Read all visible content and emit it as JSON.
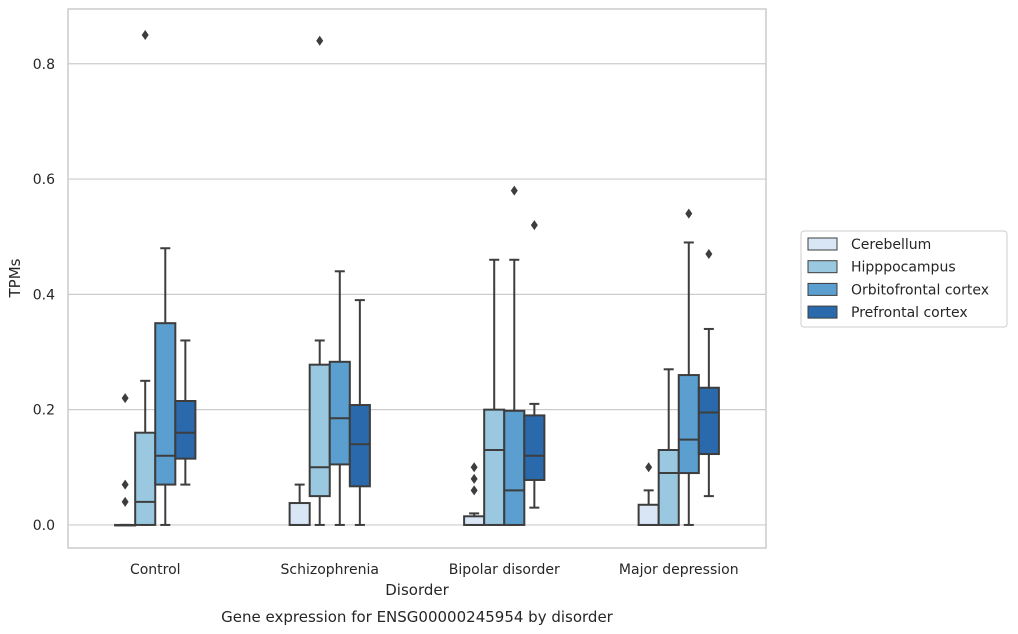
{
  "chart_data": {
    "type": "box",
    "title": "",
    "caption": "Gene expression for ENSG00000245954 by disorder",
    "xlabel": "Disorder",
    "ylabel": "TPMs",
    "ylim": [
      -0.04,
      0.895
    ],
    "yticks": [
      0.0,
      0.2,
      0.4,
      0.6,
      0.8
    ],
    "ytick_labels": [
      "0.0",
      "0.2",
      "0.4",
      "0.6",
      "0.8"
    ],
    "grid": "horizontal",
    "legend_position": "right",
    "categories": [
      "Control",
      "Schizophrenia",
      "Bipolar disorder",
      "Major depression"
    ],
    "series": [
      {
        "name": "Cerebellum",
        "color": "#d9e6f5",
        "boxes": [
          {
            "whisker_low": 0.0,
            "q1": 0.0,
            "median": 0.0,
            "q3": 0.0,
            "whisker_high": 0.0,
            "outliers": [
              0.04,
              0.07,
              0.22
            ]
          },
          {
            "whisker_low": 0.0,
            "q1": 0.0,
            "median": 0.0,
            "q3": 0.038,
            "whisker_high": 0.07,
            "outliers": []
          },
          {
            "whisker_low": 0.0,
            "q1": 0.0,
            "median": 0.0,
            "q3": 0.015,
            "whisker_high": 0.02,
            "outliers": [
              0.06,
              0.08,
              0.1
            ]
          },
          {
            "whisker_low": 0.0,
            "q1": 0.0,
            "median": 0.0,
            "q3": 0.035,
            "whisker_high": 0.06,
            "outliers": [
              0.1
            ]
          }
        ]
      },
      {
        "name": "Hipppocampus",
        "color": "#9ac8e0",
        "boxes": [
          {
            "whisker_low": 0.0,
            "q1": 0.0,
            "median": 0.04,
            "q3": 0.16,
            "whisker_high": 0.25,
            "outliers": [
              0.85
            ]
          },
          {
            "whisker_low": 0.0,
            "q1": 0.05,
            "median": 0.1,
            "q3": 0.278,
            "whisker_high": 0.32,
            "outliers": [
              0.84
            ]
          },
          {
            "whisker_low": 0.0,
            "q1": 0.0,
            "median": 0.13,
            "q3": 0.2,
            "whisker_high": 0.46,
            "outliers": []
          },
          {
            "whisker_low": 0.0,
            "q1": 0.0,
            "median": 0.09,
            "q3": 0.13,
            "whisker_high": 0.27,
            "outliers": []
          }
        ]
      },
      {
        "name": "Orbitofrontal cortex",
        "color": "#5a9fcf",
        "boxes": [
          {
            "whisker_low": 0.0,
            "q1": 0.07,
            "median": 0.12,
            "q3": 0.35,
            "whisker_high": 0.48,
            "outliers": []
          },
          {
            "whisker_low": 0.0,
            "q1": 0.105,
            "median": 0.185,
            "q3": 0.283,
            "whisker_high": 0.44,
            "outliers": []
          },
          {
            "whisker_low": 0.0,
            "q1": 0.0,
            "median": 0.06,
            "q3": 0.198,
            "whisker_high": 0.46,
            "outliers": [
              0.58
            ]
          },
          {
            "whisker_low": 0.0,
            "q1": 0.09,
            "median": 0.148,
            "q3": 0.26,
            "whisker_high": 0.49,
            "outliers": [
              0.54
            ]
          }
        ]
      },
      {
        "name": "Prefrontal cortex",
        "color": "#2a6aac",
        "boxes": [
          {
            "whisker_low": 0.07,
            "q1": 0.115,
            "median": 0.16,
            "q3": 0.215,
            "whisker_high": 0.32,
            "outliers": []
          },
          {
            "whisker_low": 0.0,
            "q1": 0.067,
            "median": 0.14,
            "q3": 0.208,
            "whisker_high": 0.39,
            "outliers": []
          },
          {
            "whisker_low": 0.03,
            "q1": 0.078,
            "median": 0.12,
            "q3": 0.19,
            "whisker_high": 0.21,
            "outliers": [
              0.52
            ]
          },
          {
            "whisker_low": 0.05,
            "q1": 0.123,
            "median": 0.195,
            "q3": 0.238,
            "whisker_high": 0.34,
            "outliers": [
              0.47
            ]
          }
        ]
      }
    ]
  }
}
